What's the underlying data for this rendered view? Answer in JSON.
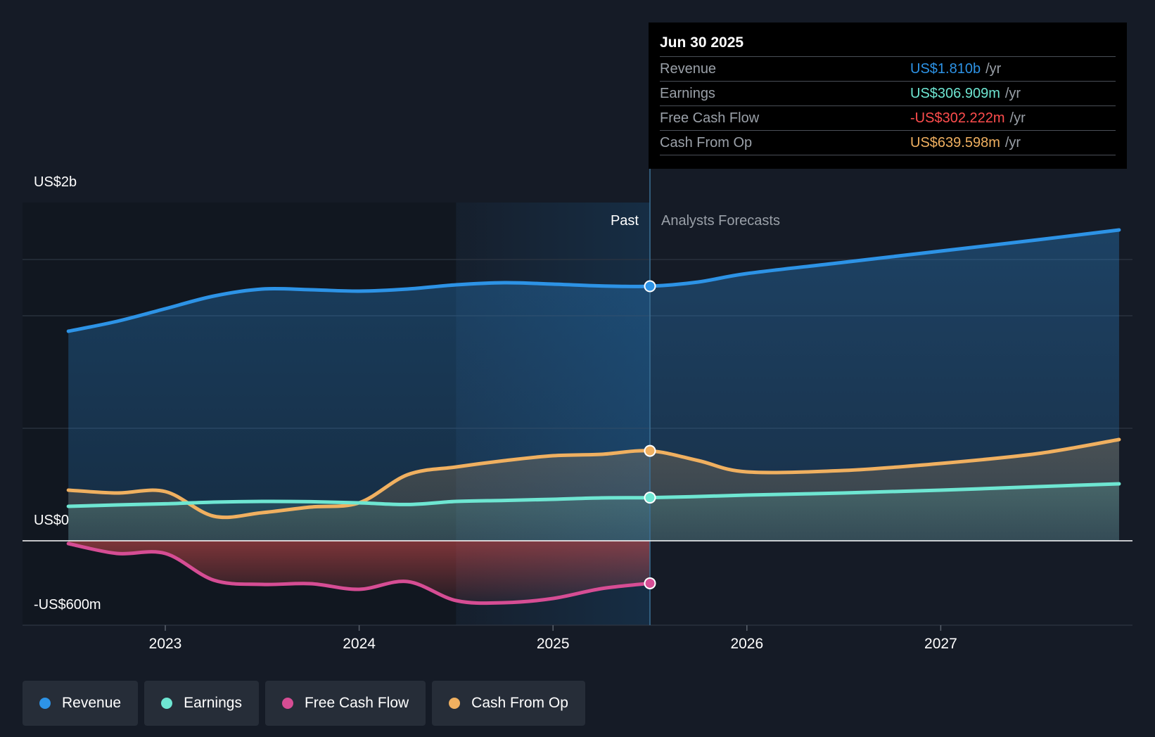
{
  "tooltip": {
    "date": "Jun 30 2025",
    "unit": "/yr",
    "rows": [
      {
        "label": "Revenue",
        "value": "US$1.810b",
        "color": "#2d93e6"
      },
      {
        "label": "Earnings",
        "value": "US$306.909m",
        "color": "#6ee6d2"
      },
      {
        "label": "Free Cash Flow",
        "value": "-US$302.222m",
        "color": "#ff4d4d"
      },
      {
        "label": "Cash From Op",
        "value": "US$639.598m",
        "color": "#f0b060"
      }
    ]
  },
  "legend": [
    {
      "label": "Revenue",
      "color": "#2d93e6"
    },
    {
      "label": "Earnings",
      "color": "#6ee6d2"
    },
    {
      "label": "Free Cash Flow",
      "color": "#d64d94"
    },
    {
      "label": "Cash From Op",
      "color": "#f0b060"
    }
  ],
  "chart_data": {
    "type": "line",
    "title": "",
    "x_range": [
      2022.5,
      2027.92
    ],
    "ylim": [
      -600,
      2400
    ],
    "y_tick_labels": [
      {
        "value": 2000,
        "label": "US$2b"
      },
      {
        "value": 0,
        "label": "US$0"
      },
      {
        "value": -600,
        "label": "-US$600m"
      }
    ],
    "x_ticks": [
      2023,
      2024,
      2025,
      2026,
      2027
    ],
    "x_tick_labels": [
      "2023",
      "2024",
      "2025",
      "2026",
      "2027"
    ],
    "past_start": 2024.5,
    "divider_x": 2025.5,
    "past_label": "Past",
    "forecast_label": "Analysts Forecasts",
    "series": [
      {
        "name": "Revenue",
        "color": "#2d93e6",
        "fill": true,
        "points": [
          [
            2022.5,
            1490
          ],
          [
            2022.75,
            1560
          ],
          [
            2023.0,
            1650
          ],
          [
            2023.25,
            1740
          ],
          [
            2023.5,
            1790
          ],
          [
            2023.75,
            1785
          ],
          [
            2024.0,
            1775
          ],
          [
            2024.25,
            1790
          ],
          [
            2024.5,
            1820
          ],
          [
            2024.75,
            1835
          ],
          [
            2025.0,
            1825
          ],
          [
            2025.25,
            1812
          ],
          [
            2025.5,
            1810
          ],
          [
            2025.75,
            1840
          ],
          [
            2026.0,
            1900
          ],
          [
            2026.5,
            1980
          ],
          [
            2027.0,
            2060
          ],
          [
            2027.5,
            2140
          ],
          [
            2027.92,
            2210
          ]
        ],
        "marker_x": 2025.5
      },
      {
        "name": "Cash From Op",
        "color": "#f0b060",
        "fill": true,
        "points": [
          [
            2022.5,
            360
          ],
          [
            2022.75,
            340
          ],
          [
            2023.0,
            350
          ],
          [
            2023.25,
            175
          ],
          [
            2023.5,
            200
          ],
          [
            2023.75,
            240
          ],
          [
            2024.0,
            270
          ],
          [
            2024.25,
            470
          ],
          [
            2024.5,
            525
          ],
          [
            2024.75,
            570
          ],
          [
            2025.0,
            605
          ],
          [
            2025.25,
            615
          ],
          [
            2025.5,
            639.6
          ],
          [
            2025.75,
            570
          ],
          [
            2026.0,
            490
          ],
          [
            2026.5,
            500
          ],
          [
            2027.0,
            550
          ],
          [
            2027.5,
            620
          ],
          [
            2027.92,
            720
          ]
        ],
        "marker_x": 2025.5
      },
      {
        "name": "Earnings",
        "color": "#6ee6d2",
        "fill": true,
        "points": [
          [
            2022.5,
            245
          ],
          [
            2022.75,
            255
          ],
          [
            2023.0,
            263
          ],
          [
            2023.25,
            275
          ],
          [
            2023.5,
            280
          ],
          [
            2023.75,
            278
          ],
          [
            2024.0,
            270
          ],
          [
            2024.25,
            258
          ],
          [
            2024.5,
            280
          ],
          [
            2024.75,
            287
          ],
          [
            2025.0,
            295
          ],
          [
            2025.25,
            305
          ],
          [
            2025.5,
            306.9
          ],
          [
            2025.75,
            315
          ],
          [
            2026.0,
            325
          ],
          [
            2026.5,
            340
          ],
          [
            2027.0,
            360
          ],
          [
            2027.5,
            385
          ],
          [
            2027.92,
            405
          ]
        ],
        "marker_x": 2025.5
      },
      {
        "name": "Free Cash Flow",
        "color": "#d64d94",
        "fill": true,
        "points": [
          [
            2022.5,
            -20
          ],
          [
            2022.75,
            -90
          ],
          [
            2023.0,
            -90
          ],
          [
            2023.25,
            -280
          ],
          [
            2023.5,
            -310
          ],
          [
            2023.75,
            -305
          ],
          [
            2024.0,
            -345
          ],
          [
            2024.25,
            -290
          ],
          [
            2024.5,
            -425
          ],
          [
            2024.75,
            -440
          ],
          [
            2025.0,
            -410
          ],
          [
            2025.25,
            -340
          ],
          [
            2025.5,
            -302.2
          ]
        ],
        "marker_x": 2025.5
      }
    ]
  }
}
